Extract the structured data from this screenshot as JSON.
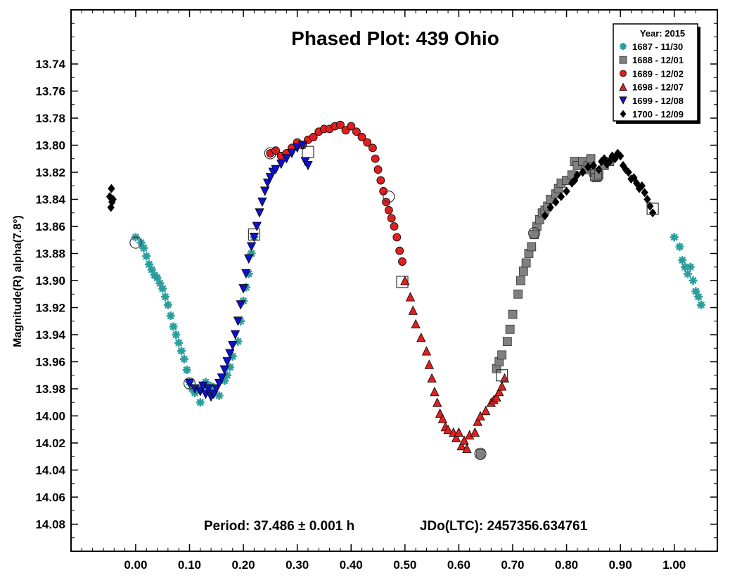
{
  "chart_data": {
    "type": "scatter",
    "title": "Phased Plot: 439 Ohio",
    "ylabel": "Magnitude(R) alpha(7.8°)",
    "xlabel": "",
    "annotation_period": "Period: 37.486 ± 0.001 h",
    "annotation_jd": "JDo(LTC): 2457356.634761",
    "xlim": [
      -0.12,
      1.08
    ],
    "ylim": [
      13.7,
      14.1
    ],
    "y_inverted": true,
    "grid": false,
    "legend_placement": "top-right",
    "legend_title": "Year: 2015",
    "x_ticks": [
      "0.00",
      "0.10",
      "0.20",
      "0.30",
      "0.40",
      "0.50",
      "0.60",
      "0.70",
      "0.80",
      "0.90",
      "1.00"
    ],
    "y_ticks": [
      "13.74",
      "13.76",
      "13.78",
      "13.80",
      "13.82",
      "13.84",
      "13.86",
      "13.88",
      "13.90",
      "13.92",
      "13.94",
      "13.96",
      "13.98",
      "14.00",
      "14.02",
      "14.04",
      "14.06",
      "14.08"
    ],
    "series": [
      {
        "name": "1687 - 11/30",
        "marker": "asterisk",
        "color": "#2a9d9d",
        "points": [
          [
            0.0,
            13.868
          ],
          [
            0.01,
            13.872
          ],
          [
            0.015,
            13.876
          ],
          [
            0.02,
            13.882
          ],
          [
            0.025,
            13.888
          ],
          [
            0.03,
            13.892
          ],
          [
            0.035,
            13.896
          ],
          [
            0.04,
            13.898
          ],
          [
            0.045,
            13.902
          ],
          [
            0.05,
            13.906
          ],
          [
            0.055,
            13.912
          ],
          [
            0.06,
            13.918
          ],
          [
            0.065,
            13.926
          ],
          [
            0.07,
            13.934
          ],
          [
            0.075,
            13.94
          ],
          [
            0.08,
            13.946
          ],
          [
            0.085,
            13.952
          ],
          [
            0.09,
            13.958
          ],
          [
            0.095,
            13.966
          ],
          [
            0.1,
            13.975
          ],
          [
            0.105,
            13.98
          ],
          [
            0.11,
            13.983
          ],
          [
            0.115,
            13.98
          ],
          [
            0.12,
            13.99
          ],
          [
            0.125,
            13.978
          ],
          [
            0.13,
            13.975
          ],
          [
            0.14,
            13.978
          ],
          [
            0.145,
            13.982
          ],
          [
            0.155,
            13.985
          ],
          [
            0.165,
            13.974
          ],
          [
            0.17,
            13.97
          ],
          [
            0.175,
            13.964
          ],
          [
            0.18,
            13.956
          ],
          [
            0.19,
            13.945
          ],
          [
            0.195,
            13.93
          ],
          [
            0.2,
            13.915
          ],
          [
            0.205,
            13.905
          ],
          [
            0.21,
            13.895
          ],
          [
            0.215,
            13.88
          ],
          [
            0.22,
            13.868
          ],
          [
            1.0,
            13.868
          ],
          [
            1.01,
            13.875
          ],
          [
            1.015,
            13.885
          ],
          [
            1.02,
            13.89
          ],
          [
            1.025,
            13.895
          ],
          [
            1.03,
            13.89
          ],
          [
            1.035,
            13.9
          ],
          [
            1.04,
            13.908
          ],
          [
            1.045,
            13.912
          ],
          [
            1.05,
            13.918
          ]
        ]
      },
      {
        "name": "1688 - 12/01",
        "marker": "square",
        "color": "#808080",
        "points": [
          [
            0.64,
            14.028
          ],
          [
            0.67,
            13.965
          ],
          [
            0.675,
            13.96
          ],
          [
            0.68,
            13.955
          ],
          [
            0.69,
            13.945
          ],
          [
            0.695,
            13.936
          ],
          [
            0.7,
            13.925
          ],
          [
            0.71,
            13.91
          ],
          [
            0.715,
            13.9
          ],
          [
            0.72,
            13.893
          ],
          [
            0.725,
            13.887
          ],
          [
            0.73,
            13.88
          ],
          [
            0.735,
            13.875
          ],
          [
            0.74,
            13.866
          ],
          [
            0.745,
            13.86
          ],
          [
            0.75,
            13.855
          ],
          [
            0.755,
            13.85
          ],
          [
            0.76,
            13.848
          ],
          [
            0.765,
            13.845
          ],
          [
            0.77,
            13.84
          ],
          [
            0.78,
            13.836
          ],
          [
            0.785,
            13.832
          ],
          [
            0.79,
            13.828
          ],
          [
            0.8,
            13.826
          ],
          [
            0.81,
            13.822
          ],
          [
            0.815,
            13.812
          ],
          [
            0.82,
            13.815
          ],
          [
            0.83,
            13.812
          ],
          [
            0.835,
            13.818
          ],
          [
            0.84,
            13.815
          ],
          [
            0.845,
            13.81
          ],
          [
            0.85,
            13.82
          ],
          [
            0.855,
            13.824
          ],
          [
            0.86,
            13.822
          ],
          [
            0.87,
            13.815
          ],
          [
            0.88,
            13.812
          ]
        ]
      },
      {
        "name": "1689 - 12/02",
        "marker": "circle",
        "color": "#e02020",
        "points": [
          [
            0.25,
            13.806
          ],
          [
            0.26,
            13.804
          ],
          [
            0.27,
            13.808
          ],
          [
            0.28,
            13.806
          ],
          [
            0.29,
            13.802
          ],
          [
            0.3,
            13.798
          ],
          [
            0.31,
            13.8
          ],
          [
            0.32,
            13.796
          ],
          [
            0.33,
            13.794
          ],
          [
            0.34,
            13.79
          ],
          [
            0.35,
            13.788
          ],
          [
            0.36,
            13.788
          ],
          [
            0.37,
            13.786
          ],
          [
            0.38,
            13.785
          ],
          [
            0.39,
            13.789
          ],
          [
            0.4,
            13.786
          ],
          [
            0.41,
            13.79
          ],
          [
            0.42,
            13.794
          ],
          [
            0.43,
            13.798
          ],
          [
            0.44,
            13.802
          ],
          [
            0.445,
            13.81
          ],
          [
            0.45,
            13.818
          ],
          [
            0.455,
            13.826
          ],
          [
            0.46,
            13.834
          ],
          [
            0.465,
            13.842
          ],
          [
            0.47,
            13.848
          ],
          [
            0.475,
            13.854
          ],
          [
            0.48,
            13.86
          ],
          [
            0.485,
            13.868
          ],
          [
            0.49,
            13.878
          ],
          [
            0.495,
            13.886
          ]
        ]
      },
      {
        "name": "1698 - 12/07",
        "marker": "triangle-up",
        "color": "#e02020",
        "points": [
          [
            0.5,
            13.9
          ],
          [
            0.51,
            13.912
          ],
          [
            0.515,
            13.922
          ],
          [
            0.52,
            13.932
          ],
          [
            0.53,
            13.942
          ],
          [
            0.54,
            13.952
          ],
          [
            0.545,
            13.962
          ],
          [
            0.55,
            13.972
          ],
          [
            0.555,
            13.982
          ],
          [
            0.56,
            13.99
          ],
          [
            0.565,
            13.998
          ],
          [
            0.57,
            14.002
          ],
          [
            0.575,
            14.008
          ],
          [
            0.58,
            14.01
          ],
          [
            0.59,
            14.012
          ],
          [
            0.595,
            14.016
          ],
          [
            0.6,
            14.012
          ],
          [
            0.605,
            14.022
          ],
          [
            0.61,
            14.018
          ],
          [
            0.615,
            14.024
          ],
          [
            0.62,
            14.014
          ],
          [
            0.63,
            14.012
          ],
          [
            0.635,
            14.004
          ],
          [
            0.64,
            14.0
          ],
          [
            0.65,
            13.996
          ],
          [
            0.66,
            13.99
          ],
          [
            0.665,
            13.988
          ],
          [
            0.67,
            13.986
          ],
          [
            0.675,
            13.982
          ],
          [
            0.68,
            13.978
          ],
          [
            0.685,
            13.972
          ]
        ]
      },
      {
        "name": "1699 - 12/08",
        "marker": "triangle-down",
        "color": "#1010c8",
        "points": [
          [
            0.1,
            13.976
          ],
          [
            0.11,
            13.98
          ],
          [
            0.12,
            13.982
          ],
          [
            0.125,
            13.978
          ],
          [
            0.13,
            13.984
          ],
          [
            0.135,
            13.98
          ],
          [
            0.14,
            13.986
          ],
          [
            0.145,
            13.984
          ],
          [
            0.15,
            13.98
          ],
          [
            0.155,
            13.976
          ],
          [
            0.16,
            13.972
          ],
          [
            0.165,
            13.966
          ],
          [
            0.17,
            13.96
          ],
          [
            0.175,
            13.954
          ],
          [
            0.18,
            13.948
          ],
          [
            0.185,
            13.94
          ],
          [
            0.19,
            13.93
          ],
          [
            0.195,
            13.918
          ],
          [
            0.2,
            13.906
          ],
          [
            0.205,
            13.895
          ],
          [
            0.21,
            13.884
          ],
          [
            0.215,
            13.875
          ],
          [
            0.22,
            13.868
          ],
          [
            0.225,
            13.86
          ],
          [
            0.23,
            13.85
          ],
          [
            0.235,
            13.842
          ],
          [
            0.24,
            13.834
          ],
          [
            0.245,
            13.828
          ],
          [
            0.25,
            13.824
          ],
          [
            0.255,
            13.82
          ],
          [
            0.26,
            13.818
          ],
          [
            0.27,
            13.814
          ],
          [
            0.28,
            13.81
          ],
          [
            0.29,
            13.806
          ],
          [
            0.3,
            13.802
          ],
          [
            0.31,
            13.8
          ],
          [
            0.315,
            13.812
          ],
          [
            0.32,
            13.815
          ]
        ]
      },
      {
        "name": "1700 - 12/09",
        "marker": "diamond",
        "color": "#000000",
        "points": [
          [
            -0.045,
            13.832
          ],
          [
            -0.048,
            13.838
          ],
          [
            -0.044,
            13.842
          ],
          [
            -0.046,
            13.846
          ],
          [
            -0.042,
            13.84
          ],
          [
            0.76,
            13.852
          ],
          [
            0.77,
            13.846
          ],
          [
            0.78,
            13.842
          ],
          [
            0.79,
            13.838
          ],
          [
            0.8,
            13.834
          ],
          [
            0.81,
            13.828
          ],
          [
            0.815,
            13.826
          ],
          [
            0.82,
            13.822
          ],
          [
            0.83,
            13.82
          ],
          [
            0.84,
            13.816
          ],
          [
            0.85,
            13.815
          ],
          [
            0.86,
            13.818
          ],
          [
            0.865,
            13.812
          ],
          [
            0.87,
            13.81
          ],
          [
            0.875,
            13.814
          ],
          [
            0.88,
            13.812
          ],
          [
            0.885,
            13.808
          ],
          [
            0.89,
            13.81
          ],
          [
            0.895,
            13.806
          ],
          [
            0.9,
            13.808
          ],
          [
            0.905,
            13.815
          ],
          [
            0.91,
            13.818
          ],
          [
            0.915,
            13.82
          ],
          [
            0.92,
            13.825
          ],
          [
            0.925,
            13.824
          ],
          [
            0.93,
            13.828
          ],
          [
            0.935,
            13.832
          ],
          [
            0.94,
            13.83
          ],
          [
            0.945,
            13.835
          ],
          [
            0.95,
            13.84
          ],
          [
            0.955,
            13.845
          ],
          [
            0.96,
            13.85
          ]
        ]
      }
    ],
    "highlighted_points": [
      {
        "marker": "circle",
        "x": 0.0,
        "y": 13.872
      },
      {
        "marker": "square",
        "x": 0.22,
        "y": 13.866
      },
      {
        "marker": "circle",
        "x": 0.25,
        "y": 13.806
      },
      {
        "marker": "square",
        "x": 0.32,
        "y": 13.805
      },
      {
        "marker": "circle",
        "x": 0.47,
        "y": 13.838
      },
      {
        "marker": "square",
        "x": 0.495,
        "y": 13.901
      },
      {
        "marker": "circle",
        "x": 0.64,
        "y": 14.028
      },
      {
        "marker": "square",
        "x": 0.68,
        "y": 13.97
      },
      {
        "marker": "circle",
        "x": 0.74,
        "y": 13.865
      },
      {
        "marker": "square",
        "x": 0.855,
        "y": 13.822
      },
      {
        "marker": "square",
        "x": 0.96,
        "y": 13.847
      },
      {
        "marker": "circle",
        "x": 0.1,
        "y": 13.976
      }
    ]
  }
}
